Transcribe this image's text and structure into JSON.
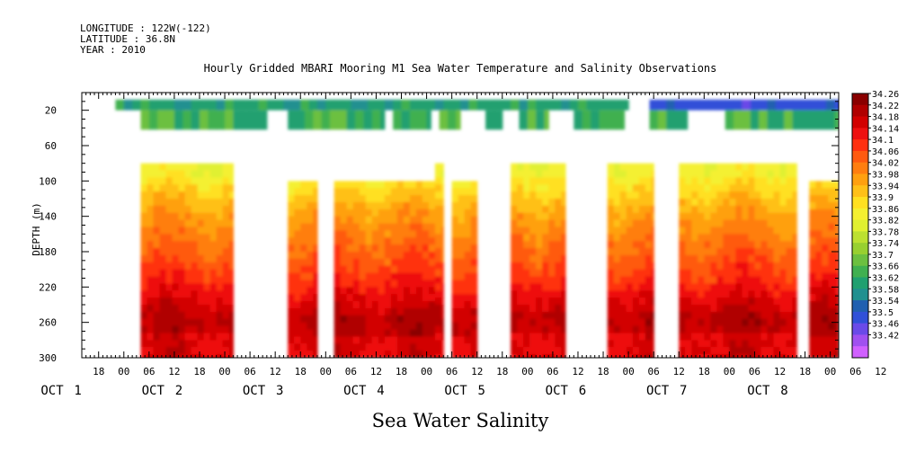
{
  "header": {
    "longitude": "LONGITUDE : 122W(-122)",
    "latitude": "LATITUDE : 36.8N",
    "year": "YEAR : 2010"
  },
  "chart_data": {
    "type": "heatmap",
    "title": "Hourly Gridded MBARI Mooring M1 Sea Water Temperature and Salinity Observations",
    "xlabel": "Sea Water Salinity",
    "ylabel": "DEPTH (m)",
    "ylim": [
      300,
      0
    ],
    "y_ticks": [
      20,
      60,
      100,
      140,
      180,
      220,
      260,
      300
    ],
    "x_range_hours": [
      14,
      194
    ],
    "x_hour_ticks": [
      "18",
      "00",
      "06",
      "12",
      "18",
      "00",
      "06",
      "12",
      "18",
      "00",
      "06",
      "12",
      "18",
      "00",
      "06",
      "12",
      "18",
      "00",
      "06",
      "12",
      "18",
      "00",
      "06",
      "12",
      "18",
      "00",
      "06",
      "12",
      "18",
      "00",
      "06",
      "12"
    ],
    "x_day_labels": [
      {
        "month": "OCT",
        "day": "1"
      },
      {
        "month": "OCT",
        "day": "2"
      },
      {
        "month": "OCT",
        "day": "3"
      },
      {
        "month": "OCT",
        "day": "4"
      },
      {
        "month": "OCT",
        "day": "5"
      },
      {
        "month": "OCT",
        "day": "6"
      },
      {
        "month": "OCT",
        "day": "7"
      },
      {
        "month": "OCT",
        "day": "8"
      }
    ],
    "colorbar": {
      "labels": [
        "34.26",
        "34.22",
        "34.18",
        "34.14",
        "34.1",
        "34.06",
        "34.02",
        "33.98",
        "33.94",
        "33.9",
        "33.86",
        "33.82",
        "33.78",
        "33.74",
        "33.7",
        "33.66",
        "33.62",
        "33.58",
        "33.54",
        "33.5",
        "33.46",
        "33.42"
      ],
      "colors": [
        "#8a0000",
        "#b00000",
        "#d20000",
        "#ee1010",
        "#ff3010",
        "#ff5a10",
        "#ff7e10",
        "#ffa010",
        "#ffc018",
        "#ffe020",
        "#f4f030",
        "#e0f030",
        "#bce030",
        "#98d030",
        "#6cc040",
        "#40b050",
        "#20a070",
        "#209090",
        "#2060b0",
        "#3050d8",
        "#6a4ae8",
        "#a050f0",
        "#d060ff"
      ]
    },
    "surface_segments_hours": [
      [
        22,
        143
      ],
      [
        149,
        194
      ]
    ],
    "mid_depth_segments_hours": [
      [
        28,
        50
      ],
      [
        50,
        58
      ],
      [
        63,
        86
      ],
      [
        88,
        97
      ],
      [
        99,
        104
      ],
      [
        110,
        114
      ],
      [
        118,
        125
      ],
      [
        131,
        143
      ],
      [
        149,
        158
      ],
      [
        167,
        194
      ]
    ],
    "deep_profile_segments": [
      {
        "x0": 28,
        "x1": 50,
        "top": 80
      },
      {
        "x0": 63,
        "x1": 70,
        "top": 100
      },
      {
        "x0": 74,
        "x1": 98,
        "top": 100
      },
      {
        "x0": 98,
        "x1": 100,
        "top": 80
      },
      {
        "x0": 102,
        "x1": 108,
        "top": 100
      },
      {
        "x0": 116,
        "x1": 129,
        "top": 80
      },
      {
        "x0": 139,
        "x1": 150,
        "top": 80
      },
      {
        "x0": 156,
        "x1": 177,
        "top": 80
      },
      {
        "x0": 177,
        "x1": 184,
        "top": 80
      },
      {
        "x0": 187,
        "x1": 194,
        "top": 100
      }
    ]
  }
}
